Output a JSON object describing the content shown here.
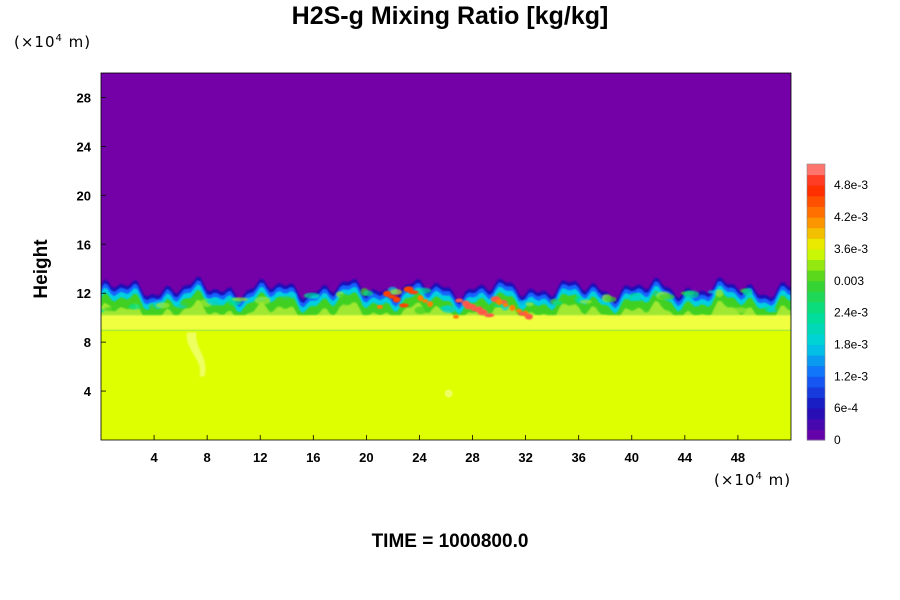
{
  "chart_data": {
    "type": "heatmap",
    "title": "H2S-g Mixing Ratio [kg/kg]",
    "ylabel": "Height",
    "xlabel": "",
    "x_unit": "(×10⁴ m)",
    "y_unit": "(×10⁴ m)",
    "footer": "TIME = 1000800.0",
    "xlim": [
      0,
      52
    ],
    "ylim": [
      0,
      30
    ],
    "x_ticks": [
      {
        "value": 4,
        "label": "4"
      },
      {
        "value": 8,
        "label": "8"
      },
      {
        "value": 12,
        "label": "12"
      },
      {
        "value": 16,
        "label": "16"
      },
      {
        "value": 20,
        "label": "20"
      },
      {
        "value": 24,
        "label": "24"
      },
      {
        "value": 28,
        "label": "28"
      },
      {
        "value": 32,
        "label": "32"
      },
      {
        "value": 36,
        "label": "36"
      },
      {
        "value": 40,
        "label": "40"
      },
      {
        "value": 44,
        "label": "44"
      },
      {
        "value": 48,
        "label": "48"
      }
    ],
    "y_ticks": [
      {
        "value": 4,
        "label": "4"
      },
      {
        "value": 8,
        "label": "8"
      },
      {
        "value": 12,
        "label": "12"
      },
      {
        "value": 16,
        "label": "16"
      },
      {
        "value": 20,
        "label": "20"
      },
      {
        "value": 24,
        "label": "24"
      },
      {
        "value": 28,
        "label": "28"
      }
    ],
    "colorbar": {
      "range": [
        0,
        0.0052
      ],
      "labels": [
        {
          "value": 0.0,
          "label": "0"
        },
        {
          "value": 0.0006,
          "label": "6e-4"
        },
        {
          "value": 0.0012,
          "label": "1.2e-3"
        },
        {
          "value": 0.0018,
          "label": "1.8e-3"
        },
        {
          "value": 0.0024,
          "label": "2.4e-3"
        },
        {
          "value": 0.003,
          "label": "0.003"
        },
        {
          "value": 0.0036,
          "label": "3.6e-3"
        },
        {
          "value": 0.0042,
          "label": "4.2e-3"
        },
        {
          "value": 0.0048,
          "label": "4.8e-3"
        }
      ],
      "stops": [
        {
          "value": 0.0,
          "color": "#7400a8"
        },
        {
          "value": 0.0006,
          "color": "#1a0fb8"
        },
        {
          "value": 0.0012,
          "color": "#1464ff"
        },
        {
          "value": 0.0018,
          "color": "#00d0e0"
        },
        {
          "value": 0.0024,
          "color": "#00e090"
        },
        {
          "value": 0.003,
          "color": "#40d020"
        },
        {
          "value": 0.0036,
          "color": "#e4ff00"
        },
        {
          "value": 0.0042,
          "color": "#ff8000"
        },
        {
          "value": 0.0048,
          "color": "#ff2000"
        },
        {
          "value": 0.0052,
          "color": "#ff9090"
        }
      ]
    },
    "regions": [
      {
        "name": "upper-layer",
        "y_range": [
          13,
          30
        ],
        "value": 0.0,
        "color": "#7400a8"
      },
      {
        "name": "transition-band",
        "y_range": [
          9.5,
          13
        ],
        "value_range": [
          0.0006,
          0.0033
        ],
        "colors": [
          "#1a0fb8",
          "#1464ff",
          "#00d0e0",
          "#40d020",
          "#a0e830"
        ]
      },
      {
        "name": "lower-layer",
        "y_range": [
          0,
          9.5
        ],
        "value": 0.0035,
        "color": "#ddff00"
      }
    ],
    "hotspots": [
      {
        "x": 23,
        "y": 11.6,
        "value": 0.0046
      },
      {
        "x": 29.5,
        "y": 10.8,
        "value": 0.005
      }
    ]
  }
}
